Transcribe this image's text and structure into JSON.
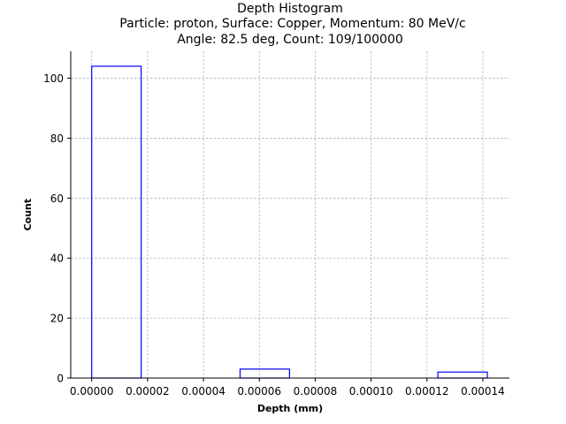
{
  "chart_data": {
    "type": "bar",
    "subtype": "step-histogram",
    "title": "Depth Histogram",
    "subtitle_lines": [
      "Particle: proton, Surface: Copper, Momentum: 80 MeV/c",
      "Angle: 82.5 deg, Count: 109/100000"
    ],
    "xlabel": "Depth (mm)",
    "ylabel": "Count",
    "xlim": [
      -7.5e-06,
      0.0001495
    ],
    "ylim": [
      0,
      109
    ],
    "xticks": [
      0.0,
      2e-05,
      4e-05,
      6e-05,
      8e-05,
      0.0001,
      0.00012,
      0.00014
    ],
    "xtick_labels": [
      "0.00000",
      "0.00002",
      "0.00004",
      "0.00006",
      "0.00008",
      "0.00010",
      "0.00012",
      "0.00014"
    ],
    "yticks": [
      0,
      20,
      40,
      60,
      80,
      100
    ],
    "ytick_labels": [
      "0",
      "20",
      "40",
      "60",
      "80",
      "100"
    ],
    "bins": [
      {
        "x0": 0.0,
        "x1": 1.77e-05,
        "count": 104
      },
      {
        "x0": 1.77e-05,
        "x1": 3.54e-05,
        "count": 0
      },
      {
        "x0": 3.54e-05,
        "x1": 5.31e-05,
        "count": 0
      },
      {
        "x0": 5.31e-05,
        "x1": 7.08e-05,
        "count": 3
      },
      {
        "x0": 7.08e-05,
        "x1": 8.85e-05,
        "count": 0
      },
      {
        "x0": 8.85e-05,
        "x1": 0.0001062,
        "count": 0
      },
      {
        "x0": 0.0001062,
        "x1": 0.0001239,
        "count": 0
      },
      {
        "x0": 0.0001239,
        "x1": 0.0001416,
        "count": 2
      }
    ],
    "grid": true,
    "colors": {
      "bars": "#0000ff",
      "grid": "#b0b0b0",
      "axis": "#000000"
    }
  }
}
